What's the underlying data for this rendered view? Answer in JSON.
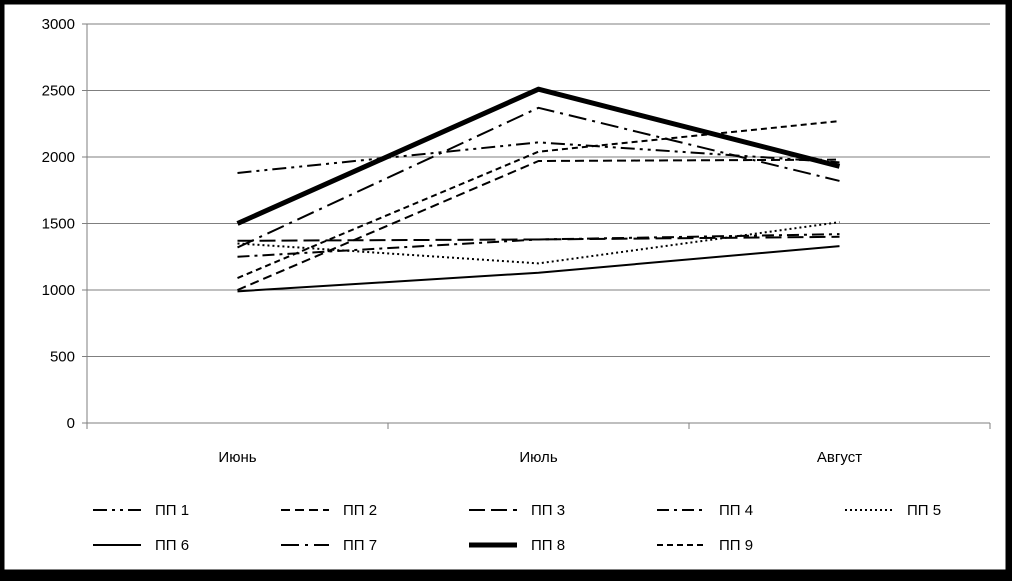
{
  "chart_data": {
    "type": "line",
    "title": "",
    "xlabel": "",
    "ylabel": "",
    "categories": [
      "Июнь",
      "Июль",
      "Август"
    ],
    "ylim": [
      0,
      3000
    ],
    "yticks": [
      0,
      500,
      1000,
      1500,
      2000,
      2500,
      3000
    ],
    "grid": true,
    "legend_position": "bottom",
    "series": [
      {
        "name": "ПП 1",
        "values": [
          1880,
          2110,
          1960
        ],
        "dash": "14,5,3,5,3,5",
        "width": 2
      },
      {
        "name": "ПП 2",
        "values": [
          1000,
          1970,
          1980
        ],
        "dash": "9,5",
        "width": 2
      },
      {
        "name": "ПП 3",
        "values": [
          1370,
          1380,
          1400
        ],
        "dash": "16,6",
        "width": 2
      },
      {
        "name": "ПП 4",
        "values": [
          1250,
          1380,
          1420
        ],
        "dash": "12,5,3,5",
        "width": 2
      },
      {
        "name": "ПП 5",
        "values": [
          1350,
          1200,
          1510
        ],
        "dash": "2,3",
        "width": 2
      },
      {
        "name": "ПП 6",
        "values": [
          990,
          1130,
          1330
        ],
        "dash": "",
        "width": 2
      },
      {
        "name": "ПП 7",
        "values": [
          1320,
          2370,
          1820
        ],
        "dash": "18,6,3,6",
        "width": 2
      },
      {
        "name": "ПП 8",
        "values": [
          1500,
          2510,
          1930
        ],
        "dash": "",
        "width": 5
      },
      {
        "name": "ПП 9",
        "values": [
          1090,
          2040,
          2270
        ],
        "dash": "6,4",
        "width": 2
      }
    ]
  }
}
